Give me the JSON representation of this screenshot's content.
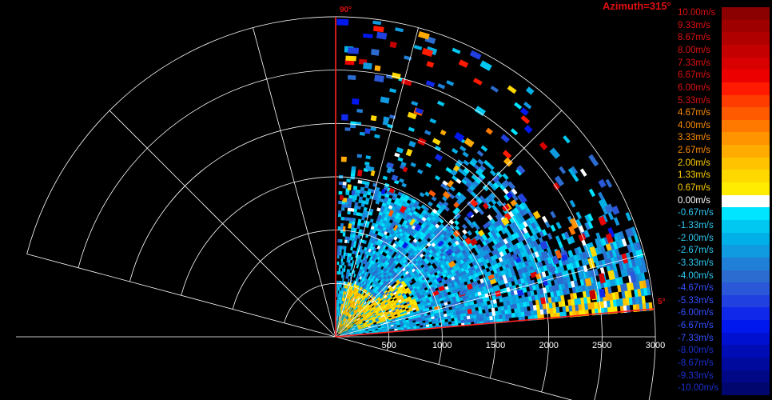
{
  "header": {
    "azimuth_label": "Azimuth=315°",
    "start_angle_label": "90°",
    "end_angle_label": "5°"
  },
  "chart_data": {
    "type": "heatmap",
    "projection": "polar-sector",
    "range_axis": {
      "ticks": [
        "500",
        "1000",
        "1500",
        "2000",
        "2500",
        "3000"
      ],
      "tick_values": [
        500,
        1000,
        1500,
        2000,
        2500,
        3000
      ],
      "max": 3000
    },
    "angle_axis": {
      "sector_start_deg": 5,
      "sector_end_deg": 90,
      "spoke_angles_deg": [
        -15,
        15,
        45,
        75,
        105,
        135,
        165
      ]
    },
    "colorbar": {
      "labels": [
        "10.00m/s",
        "9.33m/s",
        "8.67m/s",
        "8.00m/s",
        "7.33m/s",
        "6.67m/s",
        "6.00m/s",
        "5.33m/s",
        "4.67m/s",
        "4.00m/s",
        "3.33m/s",
        "2.67m/s",
        "2.00m/s",
        "1.33m/s",
        "0.67m/s",
        "0.00m/s",
        "-0.67m/s",
        "-1.33m/s",
        "-2.00m/s",
        "-2.67m/s",
        "-3.33m/s",
        "-4.00m/s",
        "-4.67m/s",
        "-5.33m/s",
        "-6.00m/s",
        "-6.67m/s",
        "-7.33m/s",
        "-8.00m/s",
        "-8.67m/s",
        "-9.33m/s",
        "-10.00m/s"
      ],
      "colors": [
        "#8b0000",
        "#9e0000",
        "#b00000",
        "#c40000",
        "#d80000",
        "#ec0000",
        "#ff1a00",
        "#ff3c00",
        "#ff5a00",
        "#ff7800",
        "#ff9300",
        "#ffab00",
        "#ffc300",
        "#ffd800",
        "#ffec00",
        "#ffffff",
        "#00e5ff",
        "#00c8f0",
        "#00b0e6",
        "#109ae0",
        "#2080d8",
        "#2c6cd0",
        "#2a58d8",
        "#2040e0",
        "#1028ea",
        "#0018ee",
        "#0010d0",
        "#000cb4",
        "#000a9c",
        "#000886",
        "#00066e"
      ],
      "label_colors": [
        "#e01010",
        "#e01010",
        "#e01010",
        "#e01010",
        "#e01010",
        "#e01010",
        "#e01010",
        "#e01010",
        "#ff8c00",
        "#ff8c00",
        "#ff8c00",
        "#ff8c00",
        "#ffd000",
        "#ffd000",
        "#ffd000",
        "#ffffff",
        "#2ec8f0",
        "#2ec8f0",
        "#2ec8f0",
        "#2ec8f0",
        "#2ec8f0",
        "#2ec8f0",
        "#3050ff",
        "#3050ff",
        "#3050ff",
        "#3050ff",
        "#3050ff",
        "#1a30d0",
        "#1a30d0",
        "#1a30d0",
        "#1a30d0"
      ]
    },
    "colors": {
      "grid": "#ffffff",
      "sector_edge": "#ff2020",
      "background": "#000000"
    }
  }
}
